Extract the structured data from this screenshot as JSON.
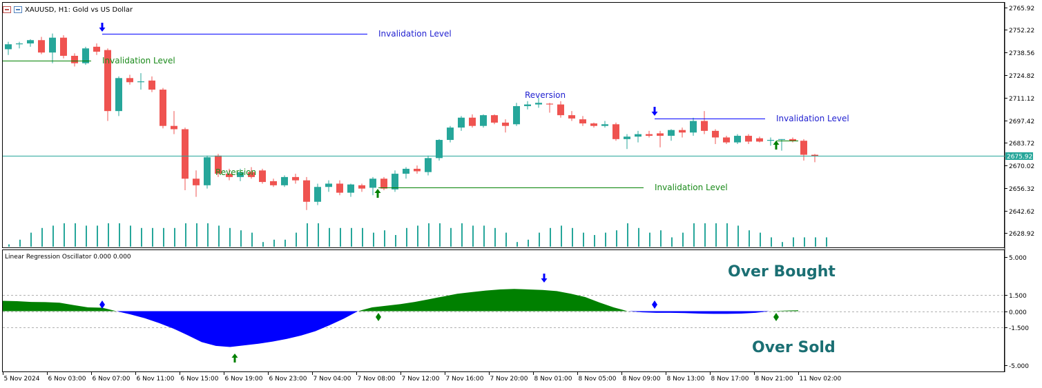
{
  "header": {
    "title": "XAUUSD, H1:  Gold vs US Dollar"
  },
  "colors": {
    "bull": "#26a69a",
    "bear": "#ef5350",
    "volume": "#26a69a",
    "blue": "#0000ff",
    "green": "#008000",
    "price_tag_bg": "#26a69a",
    "over_text": "#1b6f73"
  },
  "chart_data": [
    {
      "type": "candlestick",
      "title": "XAUUSD, H1:  Gold vs US Dollar",
      "ylim": [
        2622.0,
        2767.0
      ],
      "y_ticks": [
        "2765.92",
        "2752.22",
        "2738.56",
        "2724.82",
        "2711.12",
        "2697.42",
        "2683.72",
        "2670.02",
        "2656.32",
        "2642.62",
        "2628.92"
      ],
      "y_tick_values": [
        2765.92,
        2752.22,
        2738.56,
        2724.82,
        2711.12,
        2697.42,
        2683.72,
        2670.02,
        2656.32,
        2642.62,
        2628.92
      ],
      "x_ticks": [
        "5 Nov 2024",
        "6 Nov 03:00",
        "6 Nov 07:00",
        "6 Nov 11:00",
        "6 Nov 15:00",
        "6 Nov 19:00",
        "6 Nov 23:00",
        "7 Nov 04:00",
        "7 Nov 08:00",
        "7 Nov 12:00",
        "7 Nov 16:00",
        "7 Nov 20:00",
        "8 Nov 01:00",
        "8 Nov 05:00",
        "8 Nov 09:00",
        "8 Nov 13:00",
        "8 Nov 17:00",
        "8 Nov 21:00",
        "11 Nov 02:00"
      ],
      "x_tick_bar_index": [
        0,
        4,
        8,
        12,
        16,
        20,
        24,
        28,
        32,
        36,
        40,
        44,
        48,
        52,
        56,
        60,
        64,
        68,
        72
      ],
      "current_price": "2675.92",
      "current_price_value": 2675.92,
      "ohlc": [
        [
          2740.5,
          2745.0,
          2737.0,
          2743.5
        ],
        [
          2743.5,
          2745.0,
          2741.0,
          2744.0
        ],
        [
          2744.0,
          2746.5,
          2742.0,
          2746.0
        ],
        [
          2746.0,
          2748.0,
          2737.5,
          2738.5
        ],
        [
          2738.5,
          2750.0,
          2732.0,
          2747.5
        ],
        [
          2747.5,
          2749.0,
          2735.0,
          2736.5
        ],
        [
          2736.5,
          2738.0,
          2730.0,
          2732.0
        ],
        [
          2732.0,
          2742.0,
          2731.0,
          2741.0
        ],
        [
          2742.0,
          2744.0,
          2737.0,
          2739.0
        ],
        [
          2740.0,
          2741.0,
          2697.0,
          2703.0
        ],
        [
          2703.0,
          2724.0,
          2700.0,
          2723.0
        ],
        [
          2723.0,
          2725.0,
          2719.0,
          2720.5
        ],
        [
          2720.5,
          2726.0,
          2716.0,
          2721.0
        ],
        [
          2721.5,
          2724.0,
          2714.5,
          2716.0
        ],
        [
          2716.0,
          2717.0,
          2692.5,
          2694.0
        ],
        [
          2694.0,
          2703.0,
          2689.0,
          2692.0
        ],
        [
          2692.0,
          2693.0,
          2655.0,
          2662.0
        ],
        [
          2662.0,
          2667.0,
          2651.0,
          2658.0
        ],
        [
          2658.0,
          2676.0,
          2656.0,
          2675.0
        ],
        [
          2676.0,
          2677.0,
          2663.0,
          2665.0
        ],
        [
          2665.0,
          2668.0,
          2661.0,
          2663.0
        ],
        [
          2663.0,
          2668.0,
          2660.5,
          2666.0
        ],
        [
          2666.0,
          2669.0,
          2662.0,
          2663.0
        ],
        [
          2667.0,
          2668.0,
          2659.0,
          2660.0
        ],
        [
          2660.5,
          2662.0,
          2657.0,
          2658.0
        ],
        [
          2658.0,
          2664.0,
          2657.0,
          2663.0
        ],
        [
          2663.0,
          2665.0,
          2659.0,
          2661.0
        ],
        [
          2661.0,
          2663.0,
          2643.0,
          2648.0
        ],
        [
          2648.0,
          2659.0,
          2646.0,
          2657.0
        ],
        [
          2657.0,
          2661.0,
          2654.0,
          2659.0
        ],
        [
          2659.0,
          2661.0,
          2652.0,
          2653.5
        ],
        [
          2653.5,
          2659.0,
          2651.0,
          2658.5
        ],
        [
          2658.0,
          2659.0,
          2654.0,
          2656.0
        ],
        [
          2656.5,
          2663.0,
          2652.0,
          2662.0
        ],
        [
          2662.0,
          2663.0,
          2655.0,
          2656.0
        ],
        [
          2655.5,
          2667.0,
          2654.0,
          2665.0
        ],
        [
          2665.0,
          2669.0,
          2662.0,
          2668.0
        ],
        [
          2668.0,
          2670.0,
          2665.0,
          2666.5
        ],
        [
          2666.0,
          2676.0,
          2664.0,
          2674.5
        ],
        [
          2674.5,
          2686.0,
          2673.0,
          2685.5
        ],
        [
          2685.5,
          2694.0,
          2684.0,
          2693.0
        ],
        [
          2693.0,
          2700.0,
          2691.0,
          2699.0
        ],
        [
          2699.0,
          2701.0,
          2693.0,
          2694.0
        ],
        [
          2694.0,
          2701.0,
          2693.0,
          2700.5
        ],
        [
          2700.5,
          2701.0,
          2695.0,
          2696.0
        ],
        [
          2696.0,
          2698.0,
          2690.0,
          2694.0
        ],
        [
          2695.0,
          2708.0,
          2694.0,
          2706.0
        ],
        [
          2706.0,
          2709.0,
          2704.0,
          2707.0
        ],
        [
          2707.0,
          2711.0,
          2705.0,
          2708.0
        ],
        [
          2707.5,
          2708.0,
          2702.0,
          2707.0
        ],
        [
          2707.0,
          2709.0,
          2699.0,
          2700.5
        ],
        [
          2700.5,
          2703.0,
          2697.0,
          2698.5
        ],
        [
          2698.0,
          2700.0,
          2694.0,
          2695.5
        ],
        [
          2695.5,
          2696.0,
          2693.0,
          2694.0
        ],
        [
          2694.0,
          2697.0,
          2693.0,
          2695.0
        ],
        [
          2695.0,
          2696.0,
          2685.0,
          2686.0
        ],
        [
          2686.0,
          2689.0,
          2680.0,
          2687.5
        ],
        [
          2687.5,
          2691.0,
          2684.0,
          2689.0
        ],
        [
          2689.0,
          2691.0,
          2687.0,
          2688.0
        ],
        [
          2689.5,
          2691.0,
          2681.0,
          2688.0
        ],
        [
          2688.0,
          2692.0,
          2685.0,
          2691.5
        ],
        [
          2691.5,
          2693.0,
          2687.0,
          2690.0
        ],
        [
          2690.0,
          2699.0,
          2688.0,
          2697.0
        ],
        [
          2697.0,
          2703.0,
          2689.0,
          2691.0
        ],
        [
          2691.0,
          2692.0,
          2683.0,
          2687.0
        ],
        [
          2687.0,
          2688.0,
          2683.0,
          2684.0
        ],
        [
          2684.0,
          2689.0,
          2683.0,
          2688.0
        ],
        [
          2688.0,
          2689.0,
          2683.0,
          2684.5
        ],
        [
          2686.5,
          2687.5,
          2684.0,
          2684.5
        ],
        [
          2685.0,
          2687.0,
          2682.0,
          2685.5
        ],
        [
          2685.5,
          2686.0,
          2679.0,
          2686.0
        ],
        [
          2686.0,
          2687.0,
          2684.0,
          2685.0
        ],
        [
          2685.0,
          2686.0,
          2673.0,
          2676.5
        ],
        [
          2676.5,
          2677.0,
          2672.0,
          2675.9
        ]
      ],
      "volumes": [
        1,
        3,
        6,
        8,
        9,
        10,
        10,
        9,
        9,
        10,
        10,
        9,
        8,
        8,
        8,
        8,
        10,
        10,
        10,
        9,
        8,
        7,
        6,
        2,
        3,
        3,
        6,
        10,
        10,
        8,
        8,
        8,
        8,
        6,
        7,
        5,
        8,
        9,
        10,
        10,
        8,
        10,
        9,
        9,
        8,
        6,
        2,
        3,
        6,
        8,
        9,
        8,
        6,
        5,
        6,
        7,
        10,
        8,
        6,
        7,
        4,
        6,
        10,
        10,
        10,
        10,
        9,
        7,
        6,
        4,
        2,
        4,
        4,
        4,
        4
      ]
    },
    {
      "type": "area",
      "title": "Linear Regression Oscillator 0.000 0.000",
      "ylim": [
        -5.3,
        5.3
      ],
      "y_ticks": [
        "5.000",
        "1.500",
        "0.000",
        "-1.500",
        "-5.000"
      ],
      "y_tick_values": [
        5.0,
        1.5,
        0.0,
        -1.5,
        -5.0
      ],
      "levels": [
        1.5,
        0.0,
        -1.5
      ],
      "annotations": [
        "Over Bought",
        "Over Sold"
      ],
      "values": [
        0.95,
        0.92,
        0.85,
        0.83,
        0.78,
        0.55,
        0.35,
        0.32,
        0.0,
        -0.3,
        -0.65,
        -1.1,
        -1.6,
        -2.2,
        -2.85,
        -3.2,
        -3.3,
        -3.15,
        -3.0,
        -2.8,
        -2.55,
        -2.25,
        -1.85,
        -1.3,
        -0.7,
        0.0,
        0.35,
        0.5,
        0.65,
        0.85,
        1.1,
        1.35,
        1.6,
        1.75,
        1.9,
        2.0,
        2.05,
        2.0,
        1.95,
        1.85,
        1.6,
        1.3,
        0.8,
        0.35,
        0.0,
        -0.1,
        -0.15,
        -0.15,
        -0.18,
        -0.22,
        -0.25,
        -0.25,
        -0.22,
        -0.15,
        0.0,
        0.05,
        0.08
      ]
    }
  ],
  "annotations": {
    "inval_blue_1": "Invalidation Level",
    "inval_green_1": "Invalidation Level",
    "reversion_green": "Reversion",
    "reversion_blue": "Reversion",
    "inval_green_2": "Invalidation Level",
    "inval_blue_2": "Invalidation Level",
    "over_bought": "Over Bought",
    "over_sold": "Over Sold",
    "osc_title": "Linear Regression Oscillator 0.000 0.000"
  }
}
